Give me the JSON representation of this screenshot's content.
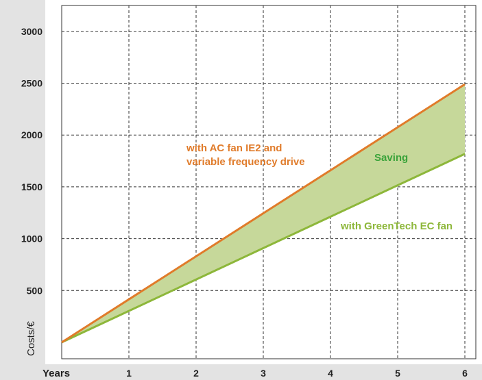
{
  "chart_data": {
    "type": "line",
    "title": "",
    "xlabel": "Years",
    "ylabel": "Costs/€",
    "x": [
      0,
      1,
      2,
      3,
      4,
      5,
      6
    ],
    "x_tick_labels": [
      "1",
      "2",
      "3",
      "4",
      "5",
      "6"
    ],
    "y_tick_labels": [
      "500",
      "1000",
      "1500",
      "2000",
      "2500",
      "3000"
    ],
    "xlim": [
      0,
      6
    ],
    "ylim": [
      0,
      3250
    ],
    "grid": true,
    "series": [
      {
        "name": "with AC fan IE2 and variable frequency drive",
        "values": [
          0,
          415,
          830,
          1245,
          1660,
          2075,
          2490
        ],
        "color": "#e07b2a"
      },
      {
        "name": "with GreenTech EC fan",
        "values": [
          0,
          303,
          606,
          909,
          1212,
          1515,
          1818
        ],
        "color": "#8db73a"
      }
    ],
    "fill_between": {
      "label": "Saving",
      "color": "#c6d89a",
      "label_color": "#3aa33a"
    },
    "annotations": {
      "ac_line1": "with AC fan IE2 and",
      "ac_line2": "variable frequency drive",
      "ec_label": "with GreenTech EC fan",
      "saving": "Saving"
    },
    "colors": {
      "axis_band": "#e3e3e3",
      "grid": "#333333",
      "ac": "#e07b2a",
      "ec": "#8db73a",
      "saving_text": "#3aa33a"
    }
  }
}
